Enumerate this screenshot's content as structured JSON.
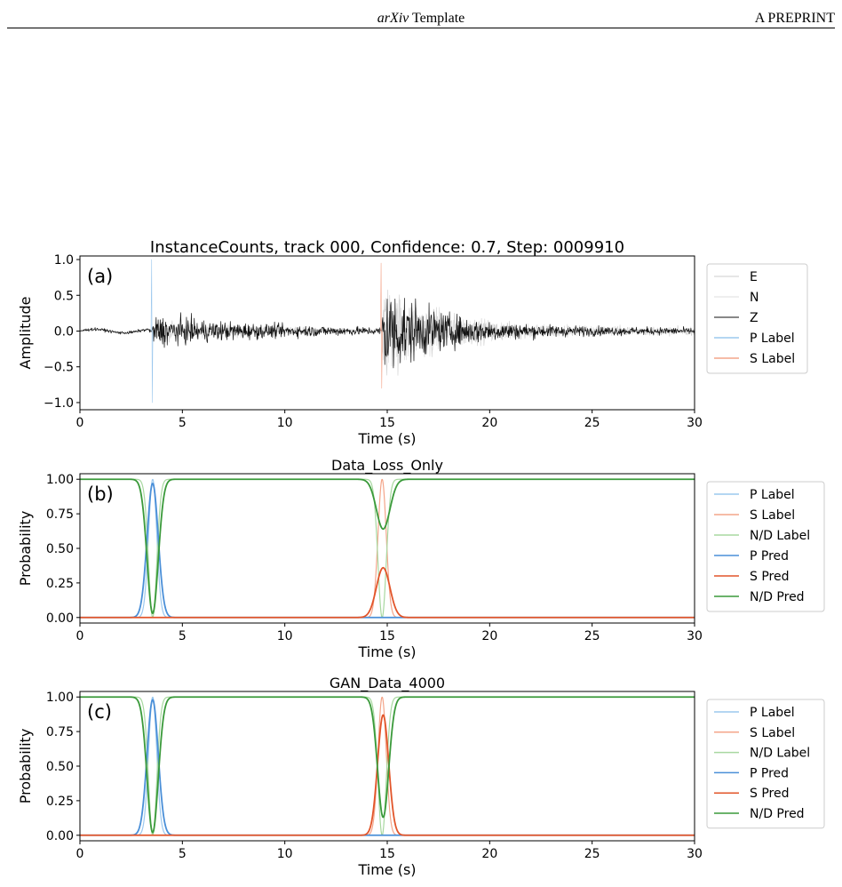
{
  "header": {
    "title_italic": "arXiv",
    "title_rest": " Template",
    "right": "A PREPRINT"
  },
  "colors": {
    "E": "#cccccc",
    "N": "#dddddd",
    "Z": "#111111",
    "P_label": "#9cc8ee",
    "S_label": "#f4a58a",
    "ND_label": "#a8d8a0",
    "P_pred": "#4a8fd8",
    "S_pred": "#e2552a",
    "ND_pred": "#3a9a3a"
  },
  "chart_data": [
    {
      "id": "a",
      "type": "line",
      "panel_tag": "(a)",
      "title": "InstanceCounts, track 000, Confidence: 0.7, Step: 0009910",
      "xlabel": "Time (s)",
      "ylabel": "Amplitude",
      "xlim": [
        0,
        30
      ],
      "ylim": [
        -1.1,
        1.05
      ],
      "xticks": [
        0,
        5,
        10,
        15,
        20,
        25,
        30
      ],
      "yticks": [
        "1.0",
        "0.5",
        "0.0",
        "−0.5",
        "−1.0"
      ],
      "ytick_values": [
        1.0,
        0.5,
        0.0,
        -0.5,
        -1.0
      ],
      "legend_position": "outside-right",
      "p_arrival": 3.55,
      "s_arrival": 14.75,
      "series": [
        {
          "name": "E",
          "color_key": "E",
          "kind": "waveform",
          "noise": 0.015,
          "p_amp": 0.12,
          "s_amp": 0.55,
          "coda": 0.12
        },
        {
          "name": "N",
          "color_key": "N",
          "kind": "waveform",
          "noise": 0.015,
          "p_amp": 0.1,
          "s_amp": 0.5,
          "coda": 0.1
        },
        {
          "name": "Z",
          "color_key": "Z",
          "kind": "waveform",
          "noise": 0.02,
          "p_amp": 0.2,
          "s_amp": 0.6,
          "coda": 0.08
        },
        {
          "name": "P Label",
          "color_key": "P_label",
          "kind": "spike",
          "x": 3.5,
          "ymin": -1.0,
          "ymax": 1.0
        },
        {
          "name": "S Label",
          "color_key": "S_label",
          "kind": "spike",
          "x": 14.7,
          "ymin": -0.8,
          "ymax": 0.95
        }
      ]
    },
    {
      "id": "b",
      "type": "line",
      "panel_tag": "(b)",
      "title": "Data_Loss_Only",
      "xlabel": "Time (s)",
      "ylabel": "Probability",
      "xlim": [
        0,
        30
      ],
      "ylim": [
        -0.04,
        1.04
      ],
      "xticks": [
        0,
        5,
        10,
        15,
        20,
        25,
        30
      ],
      "yticks": [
        "1.00",
        "0.75",
        "0.50",
        "0.25",
        "0.00"
      ],
      "ytick_values": [
        1.0,
        0.75,
        0.5,
        0.25,
        0.0
      ],
      "legend_position": "outside-right",
      "series": [
        {
          "name": "P Label",
          "color_key": "P_label",
          "kind": "gauss",
          "center": 3.55,
          "sigma": 0.2,
          "peak": 1.0,
          "width": 1.2
        },
        {
          "name": "S Label",
          "color_key": "S_label",
          "kind": "gauss",
          "center": 14.75,
          "sigma": 0.2,
          "peak": 1.0,
          "width": 1.2
        },
        {
          "name": "N/D Label",
          "color_key": "ND_label",
          "kind": "notch",
          "centers": [
            3.55,
            14.75
          ],
          "sigma": 0.2,
          "depth": [
            1.0,
            1.0
          ],
          "width": 1.2
        },
        {
          "name": "P Pred",
          "color_key": "P_pred",
          "kind": "gauss",
          "center": 3.55,
          "sigma": 0.27,
          "peak": 0.97,
          "width": 1.8
        },
        {
          "name": "S Pred",
          "color_key": "S_pred",
          "kind": "gauss",
          "center": 14.8,
          "sigma": 0.33,
          "peak": 0.36,
          "width": 1.8
        },
        {
          "name": "N/D Pred",
          "color_key": "ND_pred",
          "kind": "notch",
          "centers": [
            3.55,
            14.8
          ],
          "sigma": [
            0.27,
            0.33
          ],
          "depth": [
            0.97,
            0.36
          ],
          "width": 1.8
        }
      ]
    },
    {
      "id": "c",
      "type": "line",
      "panel_tag": "(c)",
      "title": "GAN_Data_4000",
      "xlabel": "Time (s)",
      "ylabel": "Probability",
      "xlim": [
        0,
        30
      ],
      "ylim": [
        -0.04,
        1.04
      ],
      "xticks": [
        0,
        5,
        10,
        15,
        20,
        25,
        30
      ],
      "yticks": [
        "1.00",
        "0.75",
        "0.50",
        "0.25",
        "0.00"
      ],
      "ytick_values": [
        1.0,
        0.75,
        0.5,
        0.25,
        0.0
      ],
      "legend_position": "outside-right",
      "series": [
        {
          "name": "P Label",
          "color_key": "P_label",
          "kind": "gauss",
          "center": 3.55,
          "sigma": 0.2,
          "peak": 1.0,
          "width": 1.2
        },
        {
          "name": "S Label",
          "color_key": "S_label",
          "kind": "gauss",
          "center": 14.75,
          "sigma": 0.2,
          "peak": 1.0,
          "width": 1.2
        },
        {
          "name": "N/D Label",
          "color_key": "ND_label",
          "kind": "notch",
          "centers": [
            3.55,
            14.75
          ],
          "sigma": 0.2,
          "depth": [
            1.0,
            1.0
          ],
          "width": 1.2
        },
        {
          "name": "P Pred",
          "color_key": "P_pred",
          "kind": "gauss",
          "center": 3.55,
          "sigma": 0.27,
          "peak": 0.98,
          "width": 1.8
        },
        {
          "name": "S Pred",
          "color_key": "S_pred",
          "kind": "gauss",
          "center": 14.8,
          "sigma": 0.27,
          "peak": 0.87,
          "width": 1.8
        },
        {
          "name": "N/D Pred",
          "color_key": "ND_pred",
          "kind": "notch",
          "centers": [
            3.55,
            14.8
          ],
          "sigma": [
            0.27,
            0.27
          ],
          "depth": [
            0.98,
            0.87
          ],
          "width": 1.8
        }
      ]
    }
  ]
}
